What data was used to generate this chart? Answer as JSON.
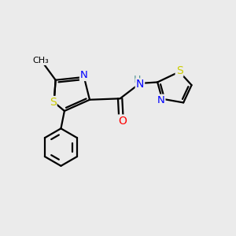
{
  "background_color": "#ebebeb",
  "bond_color": "#000000",
  "atom_colors": {
    "S": "#cccc00",
    "N": "#0000ff",
    "O": "#ff0000",
    "C": "#000000",
    "H": "#4a9090"
  },
  "figsize": [
    3.0,
    3.0
  ],
  "dpi": 100
}
